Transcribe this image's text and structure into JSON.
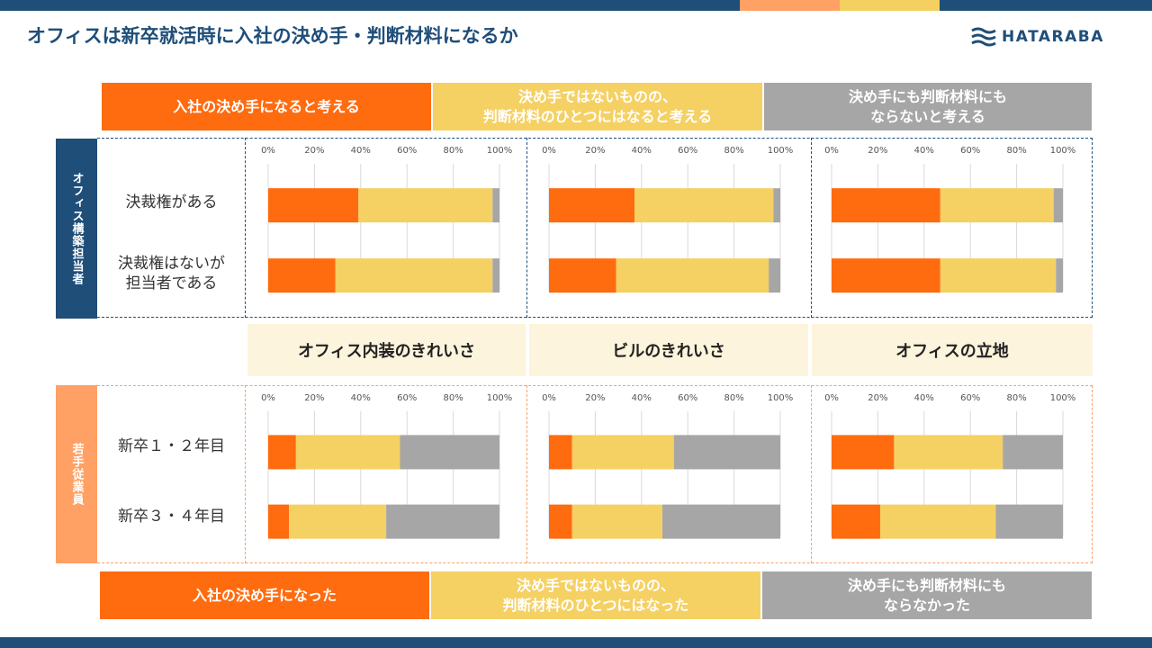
{
  "title": "オフィスは新卒就活時に入社の決め手・判断材料になるか",
  "logo": "HATARABA",
  "colors": {
    "orange": "#ff6b0f",
    "yellow": "#f5d063",
    "gray": "#a6a6a6",
    "navy": "#1f4e79",
    "peach": "#ffa064"
  },
  "legend_top": [
    "入社の決め手になると考える",
    "決め手ではないものの、\n判断材料のひとつにはなると考える",
    "決め手にも判断材料にも\nならないと考える"
  ],
  "legend_bottom": [
    "入社の決め手になった",
    "決め手ではないものの、\n判断材料のひとつにはなった",
    "決め手にも判断材料にも\nならなかった"
  ],
  "groups": {
    "top_label": "オフィス構築担当者",
    "bottom_label": "若手従業員"
  },
  "row_labels": {
    "top": [
      "決裁権がある",
      "決裁権はないが\n担当者である"
    ],
    "bottom": [
      "新卒１・２年目",
      "新卒３・４年目"
    ]
  },
  "categories": [
    "オフィス内装のきれいさ",
    "ビルのきれいさ",
    "オフィスの立地"
  ],
  "chart_data": [
    {
      "type": "bar",
      "group": "オフィス構築担当者",
      "category": "オフィス内装のきれいさ",
      "ticks": [
        "0%",
        "20%",
        "40%",
        "60%",
        "80%",
        "100%"
      ],
      "xlim": [
        0,
        100
      ],
      "rows": [
        {
          "values": [
            39,
            58,
            3
          ]
        },
        {
          "values": [
            29,
            68,
            3
          ]
        }
      ]
    },
    {
      "type": "bar",
      "group": "オフィス構築担当者",
      "category": "ビルのきれいさ",
      "ticks": [
        "0%",
        "20%",
        "40%",
        "60%",
        "80%",
        "100%"
      ],
      "xlim": [
        0,
        100
      ],
      "rows": [
        {
          "values": [
            37,
            60,
            3
          ]
        },
        {
          "values": [
            29,
            66,
            5
          ]
        }
      ]
    },
    {
      "type": "bar",
      "group": "オフィス構築担当者",
      "category": "オフィスの立地",
      "ticks": [
        "0%",
        "20%",
        "40%",
        "60%",
        "80%",
        "100%"
      ],
      "xlim": [
        0,
        100
      ],
      "rows": [
        {
          "values": [
            47,
            49,
            4
          ]
        },
        {
          "values": [
            47,
            50,
            3
          ]
        }
      ]
    },
    {
      "type": "bar",
      "group": "若手従業員",
      "category": "オフィス内装のきれいさ",
      "ticks": [
        "0%",
        "20%",
        "40%",
        "60%",
        "80%",
        "100%"
      ],
      "xlim": [
        0,
        100
      ],
      "rows": [
        {
          "values": [
            12,
            45,
            43
          ]
        },
        {
          "values": [
            9,
            42,
            49
          ]
        }
      ]
    },
    {
      "type": "bar",
      "group": "若手従業員",
      "category": "ビルのきれいさ",
      "ticks": [
        "0%",
        "20%",
        "40%",
        "60%",
        "80%",
        "100%"
      ],
      "xlim": [
        0,
        100
      ],
      "rows": [
        {
          "values": [
            10,
            44,
            46
          ]
        },
        {
          "values": [
            10,
            39,
            51
          ]
        }
      ]
    },
    {
      "type": "bar",
      "group": "若手従業員",
      "category": "オフィスの立地",
      "ticks": [
        "0%",
        "20%",
        "40%",
        "60%",
        "80%",
        "100%"
      ],
      "xlim": [
        0,
        100
      ],
      "rows": [
        {
          "values": [
            27,
            47,
            26
          ]
        },
        {
          "values": [
            21,
            50,
            29
          ]
        }
      ]
    }
  ]
}
